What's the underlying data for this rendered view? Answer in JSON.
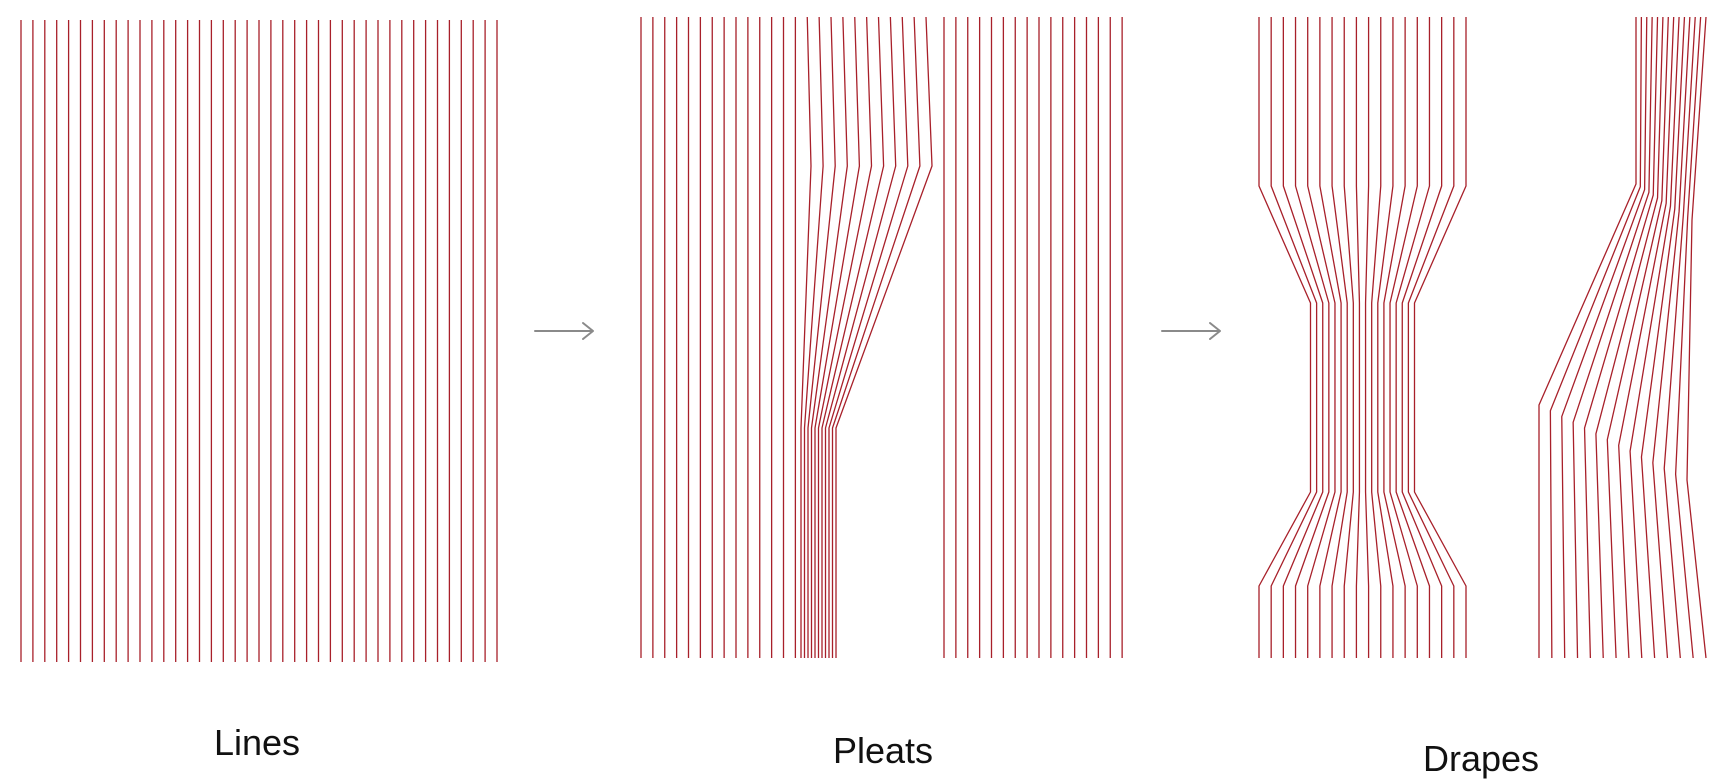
{
  "colors": {
    "line": "#a8202a",
    "arrow": "#8a8a8a",
    "label": "#111111",
    "background": "#ffffff"
  },
  "panels": [
    {
      "id": "lines",
      "label": "Lines"
    },
    {
      "id": "pleats",
      "label": "Pleats"
    },
    {
      "id": "drapes",
      "label": "Drapes"
    }
  ],
  "arrows": [
    {
      "from": "lines",
      "to": "pleats"
    },
    {
      "from": "pleats",
      "to": "drapes"
    }
  ]
}
